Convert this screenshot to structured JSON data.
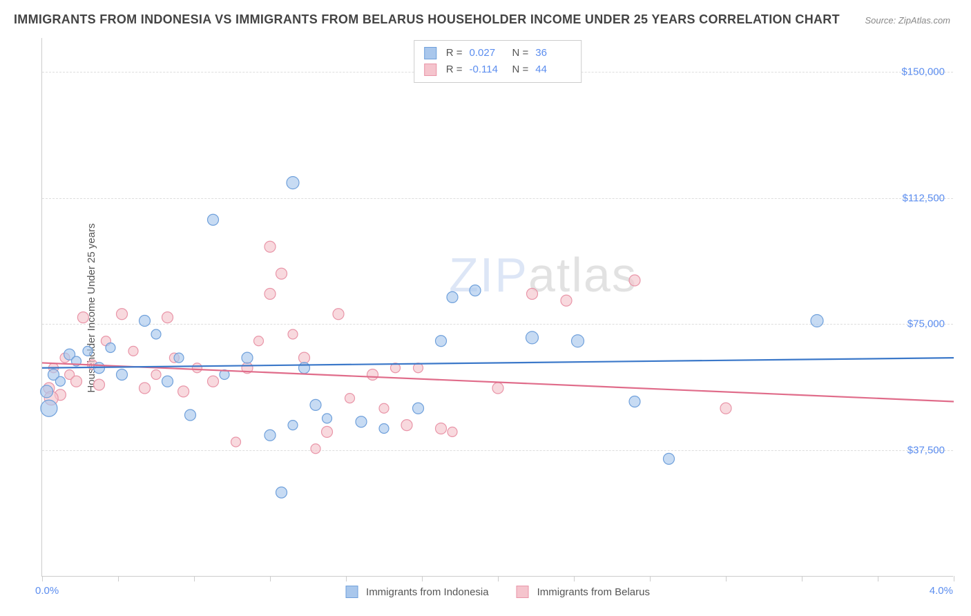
{
  "title": "IMMIGRANTS FROM INDONESIA VS IMMIGRANTS FROM BELARUS HOUSEHOLDER INCOME UNDER 25 YEARS CORRELATION CHART",
  "source": "Source: ZipAtlas.com",
  "ylabel": "Householder Income Under 25 years",
  "watermark_a": "ZIP",
  "watermark_b": "atlas",
  "chart": {
    "type": "scatter",
    "xlim": [
      0,
      4.0
    ],
    "ylim": [
      0,
      160000
    ],
    "x_min_label": "0.0%",
    "x_max_label": "4.0%",
    "y_ticks": [
      37500,
      75000,
      112500,
      150000
    ],
    "y_tick_labels": [
      "$37,500",
      "$75,000",
      "$112,500",
      "$150,000"
    ],
    "x_tick_positions": [
      0,
      0.333,
      0.667,
      1.0,
      1.333,
      1.667,
      2.0,
      2.333,
      2.667,
      3.0,
      3.333,
      3.667,
      4.0
    ],
    "background_color": "#ffffff",
    "grid_color": "#dddddd",
    "series": [
      {
        "name": "Immigrants from Indonesia",
        "color_fill": "#a9c7ec",
        "color_stroke": "#6fa0db",
        "trend_color": "#3b78c9",
        "R": "0.027",
        "N": "36",
        "trend": {
          "y_at_xmin": 62000,
          "y_at_xmax": 65000
        },
        "points": [
          {
            "x": 0.02,
            "y": 55000,
            "r": 9
          },
          {
            "x": 0.05,
            "y": 60000,
            "r": 8
          },
          {
            "x": 0.08,
            "y": 58000,
            "r": 7
          },
          {
            "x": 0.12,
            "y": 66000,
            "r": 8
          },
          {
            "x": 0.15,
            "y": 64000,
            "r": 7
          },
          {
            "x": 0.2,
            "y": 67000,
            "r": 7
          },
          {
            "x": 0.25,
            "y": 62000,
            "r": 8
          },
          {
            "x": 0.3,
            "y": 68000,
            "r": 7
          },
          {
            "x": 0.35,
            "y": 60000,
            "r": 8
          },
          {
            "x": 0.45,
            "y": 76000,
            "r": 8
          },
          {
            "x": 0.5,
            "y": 72000,
            "r": 7
          },
          {
            "x": 0.55,
            "y": 58000,
            "r": 8
          },
          {
            "x": 0.6,
            "y": 65000,
            "r": 7
          },
          {
            "x": 0.65,
            "y": 48000,
            "r": 8
          },
          {
            "x": 0.75,
            "y": 106000,
            "r": 8
          },
          {
            "x": 0.8,
            "y": 60000,
            "r": 7
          },
          {
            "x": 0.9,
            "y": 65000,
            "r": 8
          },
          {
            "x": 1.0,
            "y": 42000,
            "r": 8
          },
          {
            "x": 1.05,
            "y": 25000,
            "r": 8
          },
          {
            "x": 1.1,
            "y": 45000,
            "r": 7
          },
          {
            "x": 1.1,
            "y": 117000,
            "r": 9
          },
          {
            "x": 1.15,
            "y": 62000,
            "r": 8
          },
          {
            "x": 1.2,
            "y": 51000,
            "r": 8
          },
          {
            "x": 1.25,
            "y": 47000,
            "r": 7
          },
          {
            "x": 1.4,
            "y": 46000,
            "r": 8
          },
          {
            "x": 1.5,
            "y": 44000,
            "r": 7
          },
          {
            "x": 1.65,
            "y": 50000,
            "r": 8
          },
          {
            "x": 1.75,
            "y": 70000,
            "r": 8
          },
          {
            "x": 1.8,
            "y": 83000,
            "r": 8
          },
          {
            "x": 1.9,
            "y": 85000,
            "r": 8
          },
          {
            "x": 2.15,
            "y": 71000,
            "r": 9
          },
          {
            "x": 2.35,
            "y": 70000,
            "r": 9
          },
          {
            "x": 2.75,
            "y": 35000,
            "r": 8
          },
          {
            "x": 2.6,
            "y": 52000,
            "r": 8
          },
          {
            "x": 3.4,
            "y": 76000,
            "r": 9
          },
          {
            "x": 0.03,
            "y": 50000,
            "r": 12
          }
        ]
      },
      {
        "name": "Immigrants from Belarus",
        "color_fill": "#f5c4cd",
        "color_stroke": "#e995a8",
        "trend_color": "#e06c8a",
        "R": "-0.114",
        "N": "44",
        "trend": {
          "y_at_xmin": 63500,
          "y_at_xmax": 52000
        },
        "points": [
          {
            "x": 0.03,
            "y": 56000,
            "r": 8
          },
          {
            "x": 0.05,
            "y": 62000,
            "r": 7
          },
          {
            "x": 0.08,
            "y": 54000,
            "r": 8
          },
          {
            "x": 0.1,
            "y": 65000,
            "r": 7
          },
          {
            "x": 0.12,
            "y": 60000,
            "r": 7
          },
          {
            "x": 0.15,
            "y": 58000,
            "r": 8
          },
          {
            "x": 0.18,
            "y": 77000,
            "r": 8
          },
          {
            "x": 0.22,
            "y": 63000,
            "r": 7
          },
          {
            "x": 0.25,
            "y": 57000,
            "r": 8
          },
          {
            "x": 0.28,
            "y": 70000,
            "r": 7
          },
          {
            "x": 0.35,
            "y": 78000,
            "r": 8
          },
          {
            "x": 0.4,
            "y": 67000,
            "r": 7
          },
          {
            "x": 0.45,
            "y": 56000,
            "r": 8
          },
          {
            "x": 0.5,
            "y": 60000,
            "r": 7
          },
          {
            "x": 0.55,
            "y": 77000,
            "r": 8
          },
          {
            "x": 0.58,
            "y": 65000,
            "r": 7
          },
          {
            "x": 0.62,
            "y": 55000,
            "r": 8
          },
          {
            "x": 0.68,
            "y": 62000,
            "r": 7
          },
          {
            "x": 0.75,
            "y": 58000,
            "r": 8
          },
          {
            "x": 0.85,
            "y": 40000,
            "r": 7
          },
          {
            "x": 0.9,
            "y": 62000,
            "r": 8
          },
          {
            "x": 0.95,
            "y": 70000,
            "r": 7
          },
          {
            "x": 1.0,
            "y": 84000,
            "r": 8
          },
          {
            "x": 1.0,
            "y": 98000,
            "r": 8
          },
          {
            "x": 1.05,
            "y": 90000,
            "r": 8
          },
          {
            "x": 1.1,
            "y": 72000,
            "r": 7
          },
          {
            "x": 1.15,
            "y": 65000,
            "r": 8
          },
          {
            "x": 1.2,
            "y": 38000,
            "r": 7
          },
          {
            "x": 1.25,
            "y": 43000,
            "r": 8
          },
          {
            "x": 1.3,
            "y": 78000,
            "r": 8
          },
          {
            "x": 1.35,
            "y": 53000,
            "r": 7
          },
          {
            "x": 1.45,
            "y": 60000,
            "r": 8
          },
          {
            "x": 1.55,
            "y": 62000,
            "r": 7
          },
          {
            "x": 1.6,
            "y": 45000,
            "r": 8
          },
          {
            "x": 1.65,
            "y": 62000,
            "r": 7
          },
          {
            "x": 1.75,
            "y": 44000,
            "r": 8
          },
          {
            "x": 1.8,
            "y": 43000,
            "r": 7
          },
          {
            "x": 2.0,
            "y": 56000,
            "r": 8
          },
          {
            "x": 2.15,
            "y": 84000,
            "r": 8
          },
          {
            "x": 2.3,
            "y": 82000,
            "r": 8
          },
          {
            "x": 2.6,
            "y": 88000,
            "r": 8
          },
          {
            "x": 3.0,
            "y": 50000,
            "r": 8
          },
          {
            "x": 1.5,
            "y": 50000,
            "r": 7
          },
          {
            "x": 0.04,
            "y": 53000,
            "r": 10
          }
        ]
      }
    ]
  },
  "legend_bottom": {
    "a": "Immigrants from Indonesia",
    "b": "Immigrants from Belarus"
  },
  "stats_labels": {
    "r": "R =",
    "n": "N ="
  }
}
